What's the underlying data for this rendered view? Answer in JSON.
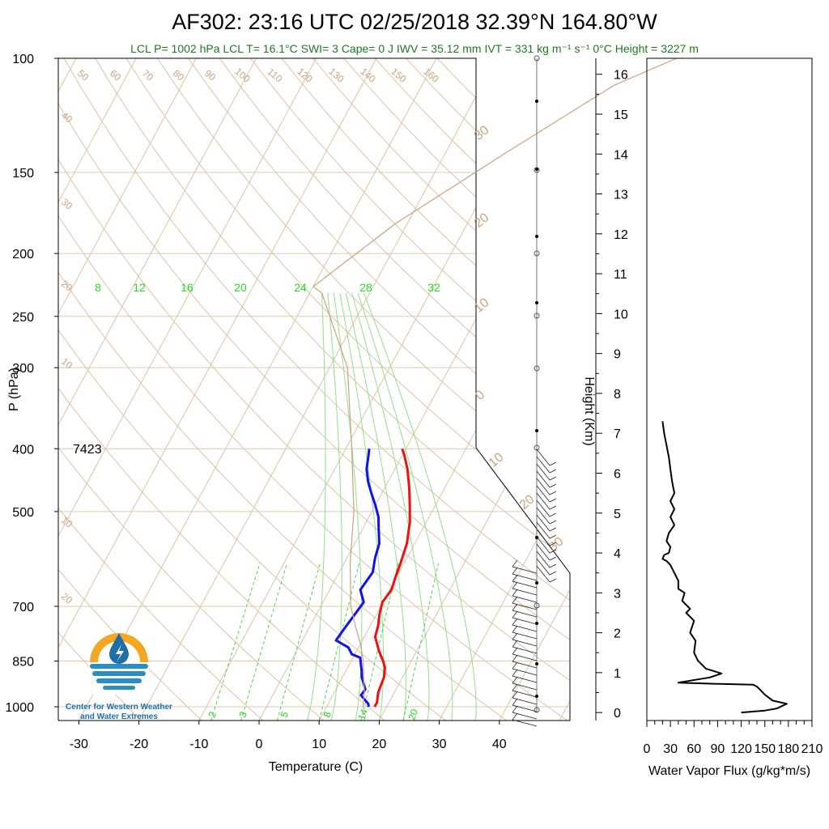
{
  "header": {
    "title": "AF302: 23:16 UTC 02/25/2018  32.39°N 164.80°W",
    "stats": "LCL P= 1002 hPa  LCL T= 16.1°C  SWI= 3  Cape= 0 J  IWV = 35.12 mm  IVT = 331 kg m⁻¹ s⁻¹  0°C Height = 3227 m"
  },
  "logo": {
    "line1": "Center for Western Weather",
    "line2": "and Water Extremes",
    "colors": {
      "sun": "#f5a623",
      "drop": "#1e6ea8",
      "water": "#2a8fc0"
    }
  },
  "chart_data": [
    {
      "type": "line",
      "name": "skew-t",
      "xlabel": "Temperature (C)",
      "ylabel": "P (hPa)",
      "xlim": [
        -34,
        52
      ],
      "ylim": [
        1050,
        100
      ],
      "yscale": "log",
      "xticks": [
        -30,
        -20,
        -10,
        0,
        10,
        20,
        30,
        40
      ],
      "yticks": [
        100,
        150,
        200,
        250,
        300,
        400,
        500,
        700,
        850,
        1000
      ],
      "annotation_top_height": "7423",
      "dry_adiabat_labels": [
        "50",
        "60",
        "70",
        "80",
        "90",
        "100",
        "110",
        "120",
        "130",
        "140",
        "150",
        "160"
      ],
      "left_edge_labels": [
        "40",
        "30",
        "20",
        "10",
        "10",
        "20"
      ],
      "right_edge_labels": [
        "30",
        "20",
        "10",
        "0",
        "10",
        "20",
        "30"
      ],
      "mixing_ratio_top_labels": [
        "8",
        "12",
        "16",
        "20",
        "24",
        "28",
        "32"
      ],
      "mixing_ratio_bottom_labels": [
        "2",
        "3",
        "5",
        "8",
        "14",
        "20"
      ],
      "series": [
        {
          "role": "temperature",
          "color": "#ee1111",
          "points": [
            [
              18,
              1000
            ],
            [
              18,
              985
            ],
            [
              17.3,
              950
            ],
            [
              16.9,
              900
            ],
            [
              16.2,
              870
            ],
            [
              15.3,
              850
            ],
            [
              13.7,
              820
            ],
            [
              11.8,
              780
            ],
            [
              11.3,
              750
            ],
            [
              10.5,
              720
            ],
            [
              9.9,
              690
            ],
            [
              10.3,
              660
            ],
            [
              9.8,
              630
            ],
            [
              9.4,
              600
            ],
            [
              8.7,
              560
            ],
            [
              7.3,
              520
            ],
            [
              5.8,
              490
            ],
            [
              4.1,
              460
            ],
            [
              2.1,
              430
            ],
            [
              0.4,
              410
            ],
            [
              -0.6,
              400
            ]
          ]
        },
        {
          "role": "dewpoint",
          "color": "#1111ee",
          "points": [
            [
              17,
              1000
            ],
            [
              16.7,
              990
            ],
            [
              14.7,
              960
            ],
            [
              14.9,
              940
            ],
            [
              13.2,
              900
            ],
            [
              12.6,
              880
            ],
            [
              11.9,
              860
            ],
            [
              11.2,
              840
            ],
            [
              9.5,
              830
            ],
            [
              8.3,
              810
            ],
            [
              5.6,
              790
            ],
            [
              5.9,
              760
            ],
            [
              6.4,
              720
            ],
            [
              6.8,
              690
            ],
            [
              5.1,
              660
            ],
            [
              5.6,
              620
            ],
            [
              4.7,
              590
            ],
            [
              4.1,
              560
            ],
            [
              2.6,
              530
            ],
            [
              1.6,
              510
            ],
            [
              0.1,
              490
            ],
            [
              -1.6,
              470
            ],
            [
              -3.3,
              450
            ],
            [
              -4.7,
              430
            ],
            [
              -5.6,
              410
            ],
            [
              -6.1,
              400
            ]
          ]
        },
        {
          "role": "parcel",
          "color": "#c9a27e",
          "points": [
            [
              16.1,
              1002
            ],
            [
              15,
              950
            ],
            [
              13.5,
              900
            ],
            [
              12,
              850
            ],
            [
              10,
              800
            ],
            [
              7.5,
              750
            ],
            [
              5,
              700
            ],
            [
              1,
              600
            ],
            [
              -3,
              500
            ],
            [
              -9,
              400
            ],
            [
              -17,
              300
            ],
            [
              -28,
              230
            ],
            [
              -30,
              225
            ],
            [
              -22,
              180
            ],
            [
              -10,
              140
            ],
            [
              2,
              110
            ],
            [
              10,
              100
            ]
          ]
        }
      ]
    },
    {
      "type": "line",
      "name": "water-vapor-flux",
      "xlabel": "Water Vapor Flux (g/kg*m/s)",
      "ylabel": "Height (Km)",
      "xlim": [
        0,
        210
      ],
      "ylim": [
        -0.2,
        16.4
      ],
      "xticks": [
        0,
        30,
        60,
        90,
        120,
        150,
        180,
        210
      ],
      "yticks": [
        0,
        1,
        2,
        3,
        4,
        5,
        6,
        7,
        8,
        9,
        10,
        11,
        12,
        13,
        14,
        15,
        16
      ],
      "series": [
        {
          "color": "#000000",
          "points": [
            [
              120,
              0
            ],
            [
              150,
              0.05
            ],
            [
              165,
              0.1
            ],
            [
              178,
              0.22
            ],
            [
              160,
              0.3
            ],
            [
              150,
              0.45
            ],
            [
              145,
              0.55
            ],
            [
              140,
              0.65
            ],
            [
              135,
              0.7
            ],
            [
              90,
              0.72
            ],
            [
              40,
              0.75
            ],
            [
              80,
              0.88
            ],
            [
              95,
              0.98
            ],
            [
              75,
              1.1
            ],
            [
              65,
              1.3
            ],
            [
              60,
              1.5
            ],
            [
              62,
              1.8
            ],
            [
              55,
              2.0
            ],
            [
              60,
              2.3
            ],
            [
              50,
              2.5
            ],
            [
              55,
              2.6
            ],
            [
              45,
              2.8
            ],
            [
              48,
              3.0
            ],
            [
              40,
              3.1
            ],
            [
              40,
              3.3
            ],
            [
              35,
              3.5
            ],
            [
              30,
              3.7
            ],
            [
              25,
              3.8
            ],
            [
              20,
              3.85
            ],
            [
              22,
              3.95
            ],
            [
              28,
              4.0
            ],
            [
              30,
              4.15
            ],
            [
              25,
              4.3
            ],
            [
              28,
              4.5
            ],
            [
              35,
              4.7
            ],
            [
              30,
              4.9
            ],
            [
              35,
              5.1
            ],
            [
              30,
              5.3
            ],
            [
              35,
              5.5
            ],
            [
              32,
              5.8
            ],
            [
              30,
              6.1
            ],
            [
              28,
              6.4
            ],
            [
              25,
              6.7
            ],
            [
              22,
              7.0
            ],
            [
              20,
              7.3
            ]
          ]
        }
      ]
    }
  ]
}
